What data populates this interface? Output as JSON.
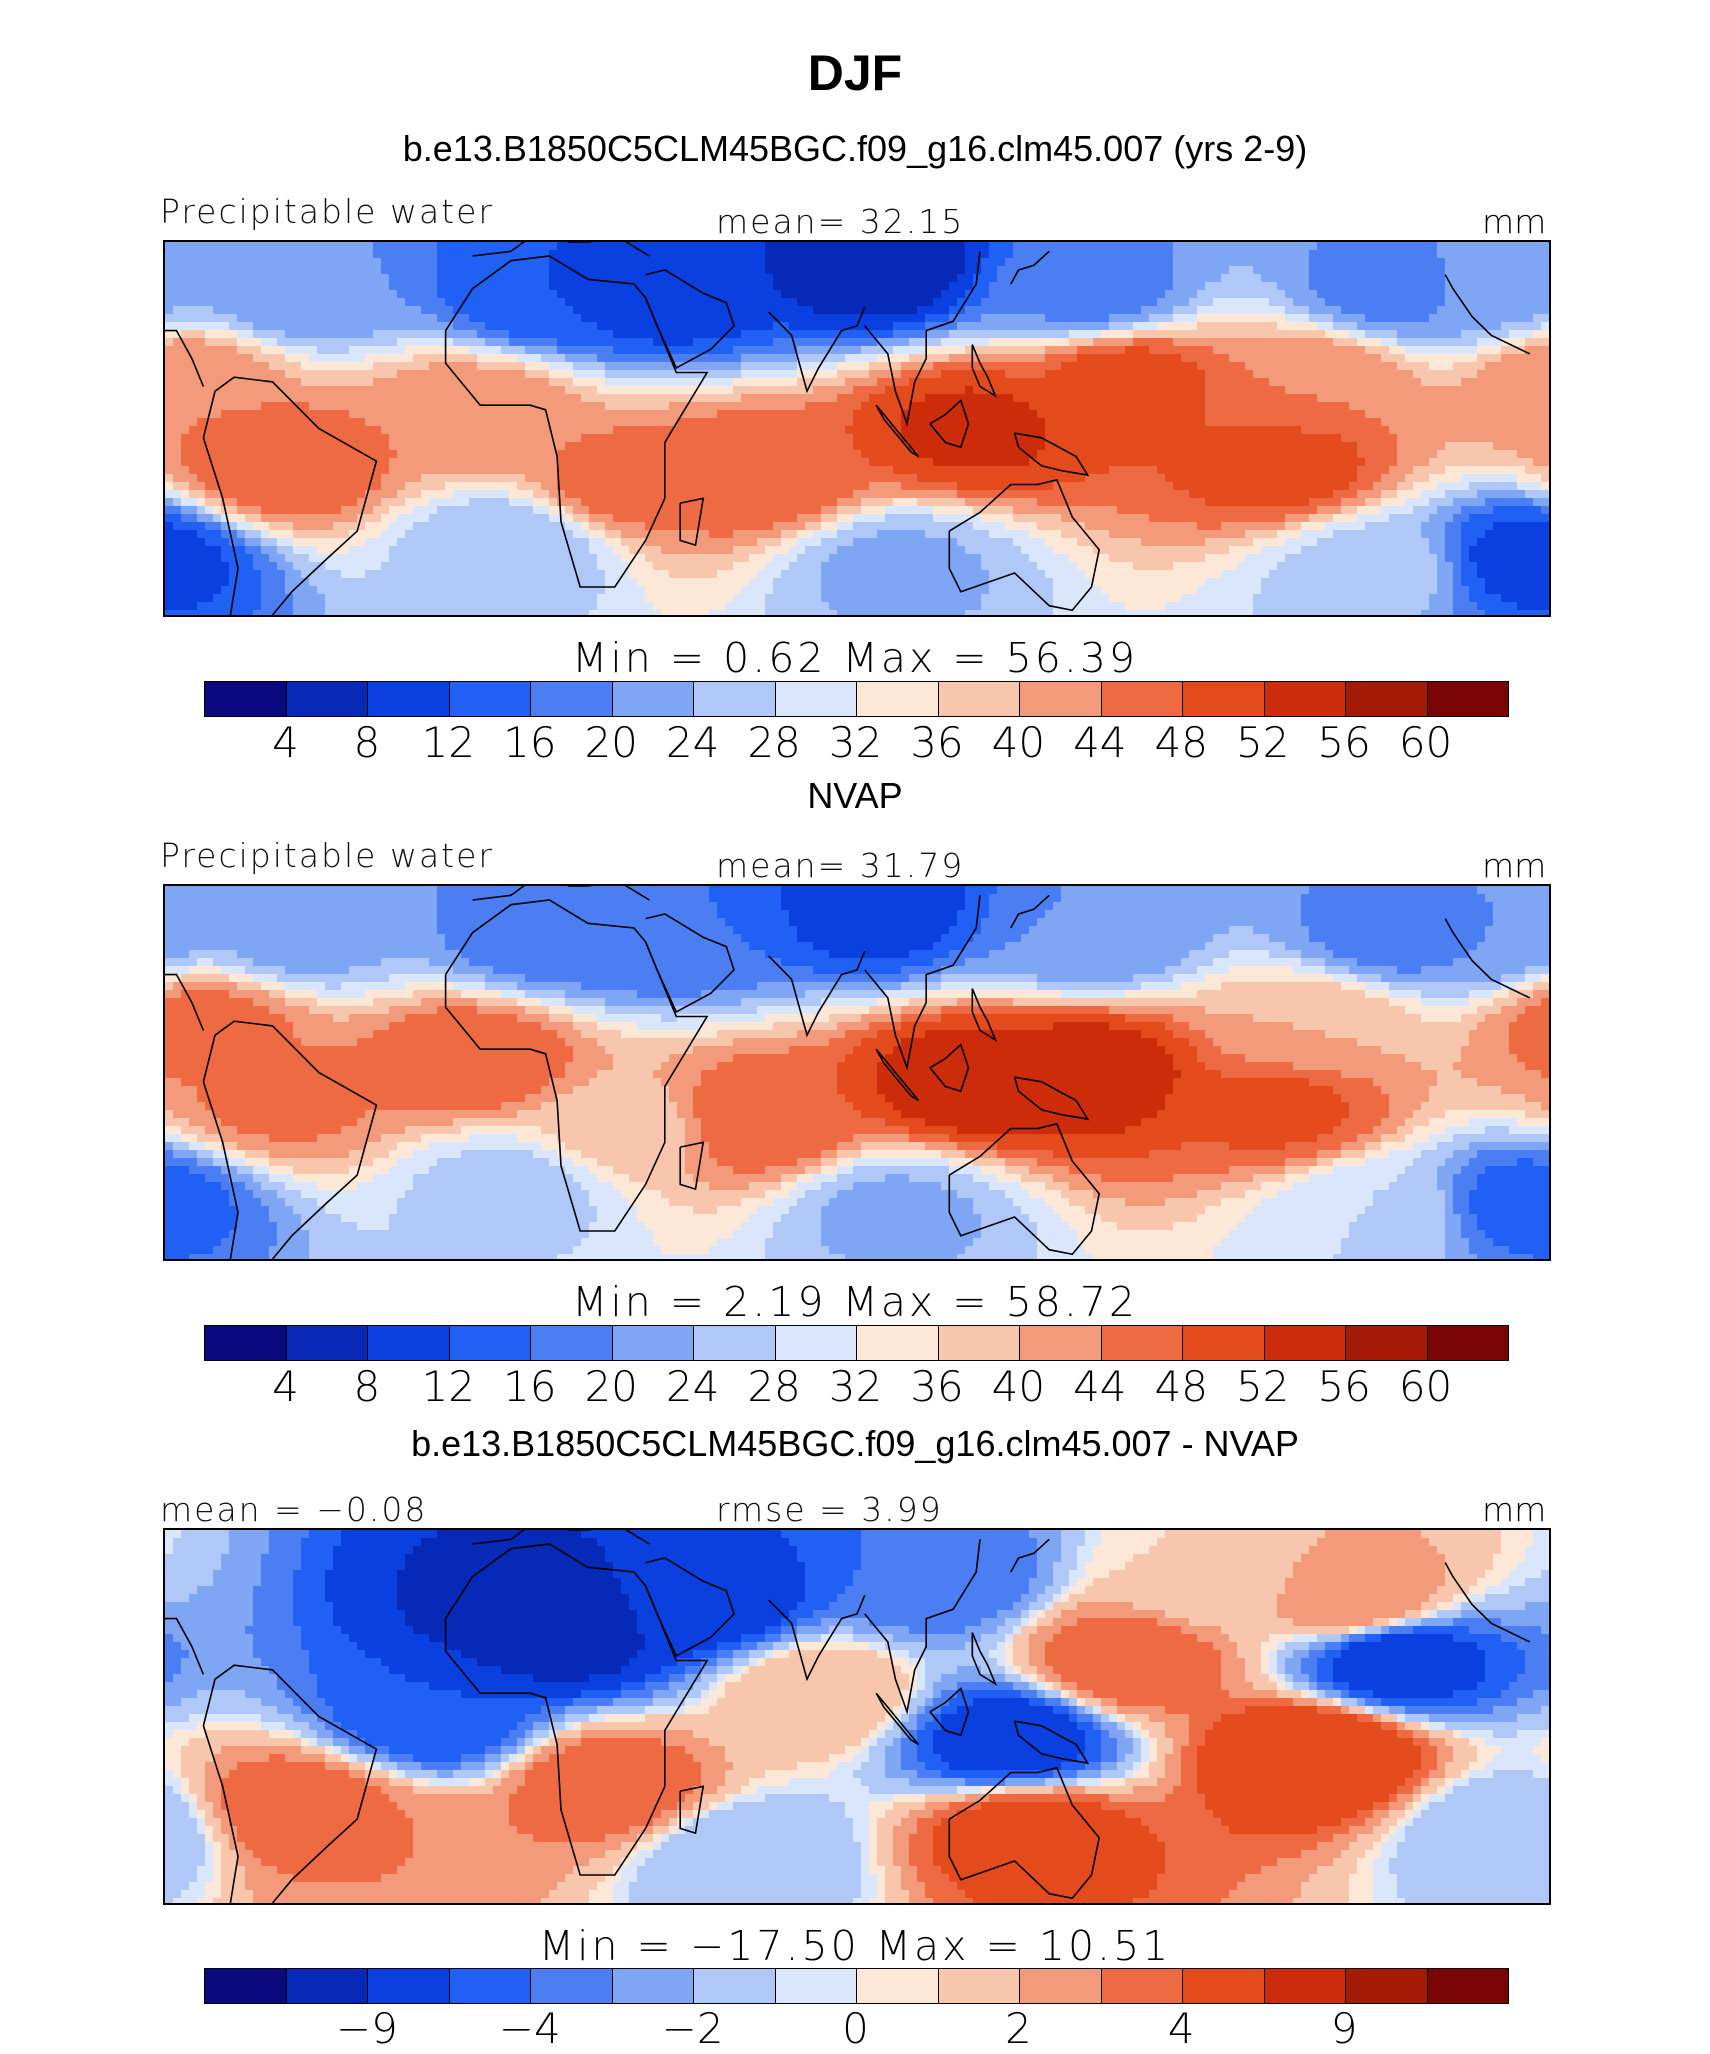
{
  "figure": {
    "title": "DJF",
    "case_title": "b.e13.B1850C5CLM45BGC.f09_g16.clm45.007 (yrs 2-9)",
    "obs_title": "NVAP",
    "diff_title": "b.e13.B1850C5CLM45BGC.f09_g16.clm45.007 - NVAP"
  },
  "panels": [
    {
      "left_label": "Precipitable water",
      "center_label": "mean=   32.15",
      "right_label": "mm",
      "minmax": "Min =    0.62  Max =   56.39",
      "min": 0.62,
      "max": 56.39,
      "mean": 32.15
    },
    {
      "left_label": "Precipitable water",
      "center_label": "mean=   31.79",
      "right_label": "mm",
      "minmax": "Min =    2.19  Max =   58.72",
      "min": 2.19,
      "max": 58.72,
      "mean": 31.79
    },
    {
      "left_label": "mean =  −0.08",
      "center_label": "rmse =    3.99",
      "right_label": "mm",
      "minmax": "Min = −17.50  Max =   10.51",
      "min": -17.5,
      "max": 10.51,
      "mean": -0.08,
      "rmse": 3.99
    }
  ],
  "colorbars": {
    "colors": [
      "#0a0a7e",
      "#0629b8",
      "#0a3fe0",
      "#2060f4",
      "#4a7ef2",
      "#7fa6f4",
      "#b0c8f8",
      "#d9e6fb",
      "#fde8d8",
      "#f8c6ad",
      "#f39a7a",
      "#ee6a43",
      "#e34a1c",
      "#cc2c0a",
      "#a31a06",
      "#7a0404"
    ],
    "abs_ticks": [
      "4",
      "8",
      "12",
      "16",
      "20",
      "24",
      "28",
      "32",
      "36",
      "40",
      "44",
      "48",
      "52",
      "56",
      "60"
    ],
    "diff_ticks": [
      {
        "label": "−9",
        "boundary": 2
      },
      {
        "label": "−4",
        "boundary": 4
      },
      {
        "label": "−2",
        "boundary": 6
      },
      {
        "label": "0",
        "boundary": 8
      },
      {
        "label": "2",
        "boundary": 10
      },
      {
        "label": "4",
        "boundary": 12
      },
      {
        "label": "9",
        "boundary": 14
      }
    ]
  },
  "fields": {
    "model": [
      {
        "lon": 95,
        "lat": 35,
        "v": 5
      },
      {
        "lon": 40,
        "lat": 30,
        "v": 9
      },
      {
        "lon": 10,
        "lat": 30,
        "v": 12
      },
      {
        "lon": 150,
        "lat": 30,
        "v": 18
      },
      {
        "lon": 230,
        "lat": 30,
        "v": 18
      },
      {
        "lon": -55,
        "lat": 30,
        "v": 20
      },
      {
        "lon": -105,
        "lat": 30,
        "v": 22
      },
      {
        "lon": 160,
        "lat": 10,
        "v": 50
      },
      {
        "lon": -160,
        "lat": -8,
        "v": 50
      },
      {
        "lon": 120,
        "lat": 0,
        "v": 53
      },
      {
        "lon": 65,
        "lat": -10,
        "v": 48
      },
      {
        "lon": 30,
        "lat": -12,
        "v": 46
      },
      {
        "lon": -60,
        "lat": -8,
        "v": 48
      },
      {
        "lon": -10,
        "lat": 3,
        "v": 44
      },
      {
        "lon": 0,
        "lat": -25,
        "v": 24
      },
      {
        "lon": 100,
        "lat": -30,
        "v": 23
      },
      {
        "lon": -135,
        "lat": -30,
        "v": 26
      },
      {
        "lon": -95,
        "lat": -28,
        "v": 10
      },
      {
        "lon": -85,
        "lat": 10,
        "v": 44
      },
      {
        "lon": -150,
        "lat": 10,
        "v": 44
      }
    ],
    "obs": [
      {
        "lon": 95,
        "lat": 35,
        "v": 10
      },
      {
        "lon": 40,
        "lat": 30,
        "v": 16
      },
      {
        "lon": 10,
        "lat": 30,
        "v": 17
      },
      {
        "lon": 150,
        "lat": 30,
        "v": 20
      },
      {
        "lon": 230,
        "lat": 30,
        "v": 18
      },
      {
        "lon": -55,
        "lat": 30,
        "v": 22
      },
      {
        "lon": -105,
        "lat": 30,
        "v": 20
      },
      {
        "lon": 150,
        "lat": 0,
        "v": 55
      },
      {
        "lon": -160,
        "lat": -8,
        "v": 49
      },
      {
        "lon": 120,
        "lat": -2,
        "v": 55
      },
      {
        "lon": 65,
        "lat": -10,
        "v": 48
      },
      {
        "lon": 30,
        "lat": -12,
        "v": 38
      },
      {
        "lon": -60,
        "lat": -6,
        "v": 45
      },
      {
        "lon": -10,
        "lat": 3,
        "v": 48
      },
      {
        "lon": 0,
        "lat": -25,
        "v": 26
      },
      {
        "lon": 100,
        "lat": -30,
        "v": 23
      },
      {
        "lon": -135,
        "lat": -30,
        "v": 28
      },
      {
        "lon": -95,
        "lat": -28,
        "v": 14
      },
      {
        "lon": -80,
        "lat": 10,
        "v": 46
      },
      {
        "lon": -150,
        "lat": 10,
        "v": 40
      }
    ],
    "diff": [
      {
        "lon": 10,
        "lat": 20,
        "v": -8
      },
      {
        "lon": 50,
        "lat": 25,
        "v": -5
      },
      {
        "lon": 110,
        "lat": 30,
        "v": -3
      },
      {
        "lon": 180,
        "lat": 30,
        "v": 1
      },
      {
        "lon": 220,
        "lat": 25,
        "v": 3
      },
      {
        "lon": 230,
        "lat": 12,
        "v": -5
      },
      {
        "lon": 160,
        "lat": 12,
        "v": 4
      },
      {
        "lon": 130,
        "lat": -5,
        "v": -5
      },
      {
        "lon": -150,
        "lat": -8,
        "v": 6
      },
      {
        "lon": 25,
        "lat": -15,
        "v": 4
      },
      {
        "lon": 80,
        "lat": 5,
        "v": 2
      },
      {
        "lon": 135,
        "lat": -25,
        "v": 5
      },
      {
        "lon": -55,
        "lat": -20,
        "v": 4
      },
      {
        "lon": -20,
        "lat": 0,
        "v": -4
      },
      {
        "lon": -30,
        "lat": -28,
        "v": 3
      },
      {
        "lon": 60,
        "lat": -30,
        "v": -1
      },
      {
        "lon": -100,
        "lat": -25,
        "v": -1
      }
    ]
  }
}
